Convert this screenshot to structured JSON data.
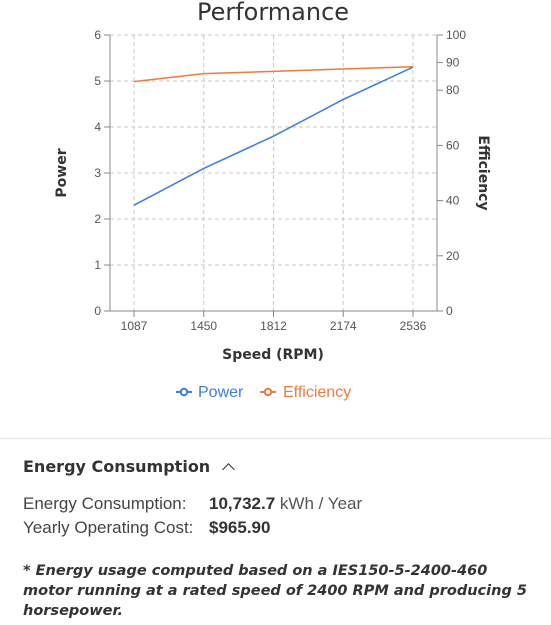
{
  "chart_data": {
    "type": "line",
    "title": "Performance",
    "xlabel": "Speed (RPM)",
    "ylabel_left": "Power",
    "ylabel_right": "Efficiency",
    "categories": [
      "1087",
      "1450",
      "1812",
      "2174",
      "2536"
    ],
    "x": [
      1087,
      1450,
      1812,
      2174,
      2536
    ],
    "ylim_left": [
      0,
      6
    ],
    "yticks_left": [
      0,
      1,
      2,
      3,
      4,
      5,
      6
    ],
    "ylim_right": [
      0,
      100
    ],
    "yticks_right": [
      0,
      20,
      40,
      60,
      80,
      90,
      100
    ],
    "grid": true,
    "legend_position": "bottom",
    "series": [
      {
        "name": "Power",
        "axis": "left",
        "color": "#3b7dde",
        "values": [
          2.3,
          3.1,
          3.8,
          4.6,
          5.3
        ]
      },
      {
        "name": "Efficiency",
        "axis": "right",
        "color": "#f07a3a",
        "values": [
          83.1,
          86.0,
          86.8,
          87.7,
          88.5
        ]
      }
    ]
  },
  "legend": {
    "power_label": "Power",
    "efficiency_label": "Efficiency"
  },
  "energy_section": {
    "header": "Energy Consumption",
    "consumption_label": "Energy Consumption:",
    "consumption_value": "10,732.7",
    "consumption_unit": "kWh / Year",
    "cost_label": "Yearly Operating Cost:",
    "cost_value": "$965.90",
    "footnote": "* Energy usage computed based on a IES150-5-2400-460 motor running at a rated speed of 2400 RPM and producing 5 horsepower."
  },
  "icons": {
    "collapse": "chevron-up-icon"
  }
}
